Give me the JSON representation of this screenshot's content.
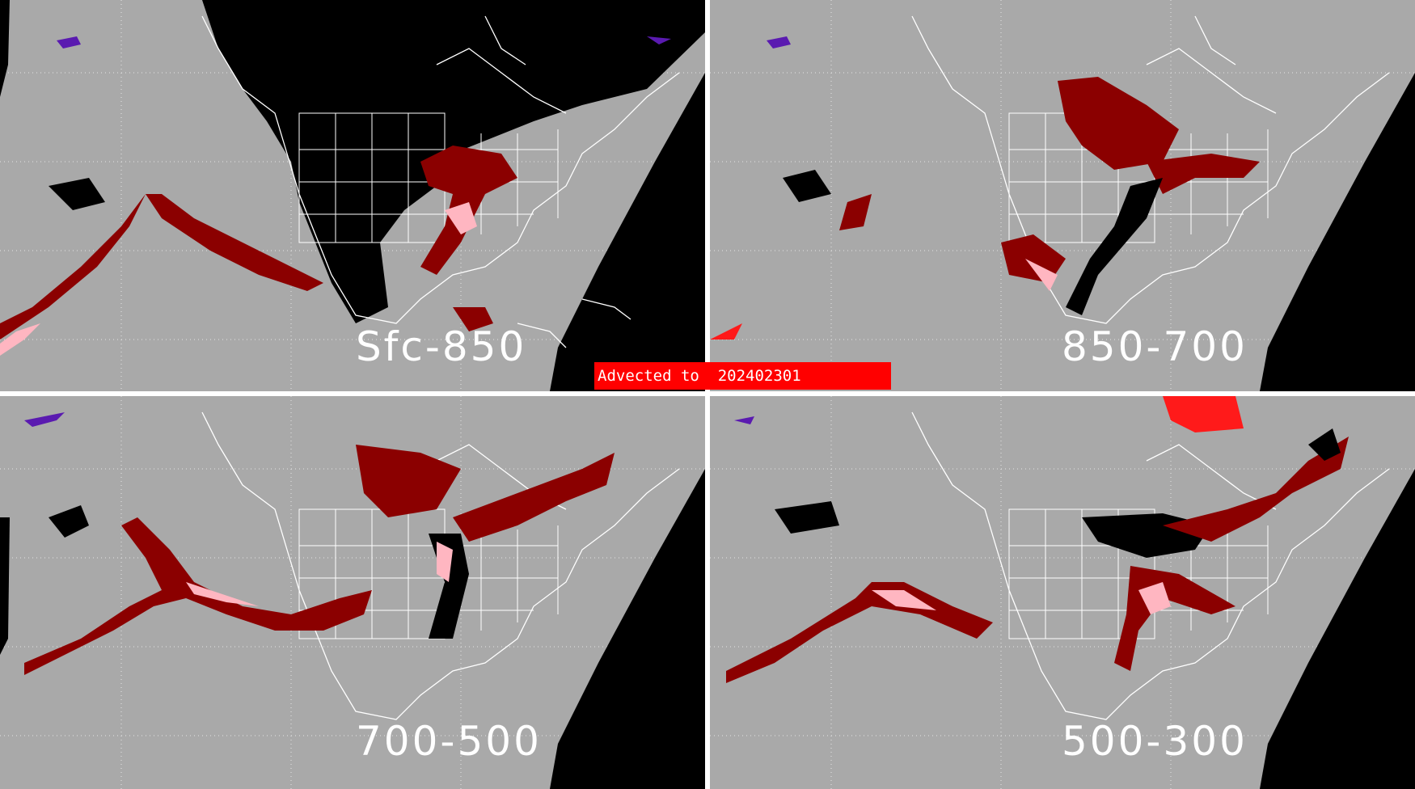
{
  "colors": {
    "background": "#a9a9a9",
    "space": "#000000",
    "outline": "#ffffff",
    "dark_red": "#8b0000",
    "red": "#ff1a1a",
    "pink": "#ffb6c1",
    "purple": "#5a1ab0",
    "banner": "#ff0000"
  },
  "banner": {
    "prefix": "Advected to",
    "date": "202402301"
  },
  "panels": [
    {
      "id": "p0",
      "label": "Sfc-850"
    },
    {
      "id": "p1",
      "label": "850-700"
    },
    {
      "id": "p2",
      "label": "700-500"
    },
    {
      "id": "p3",
      "label": "500-300"
    }
  ]
}
